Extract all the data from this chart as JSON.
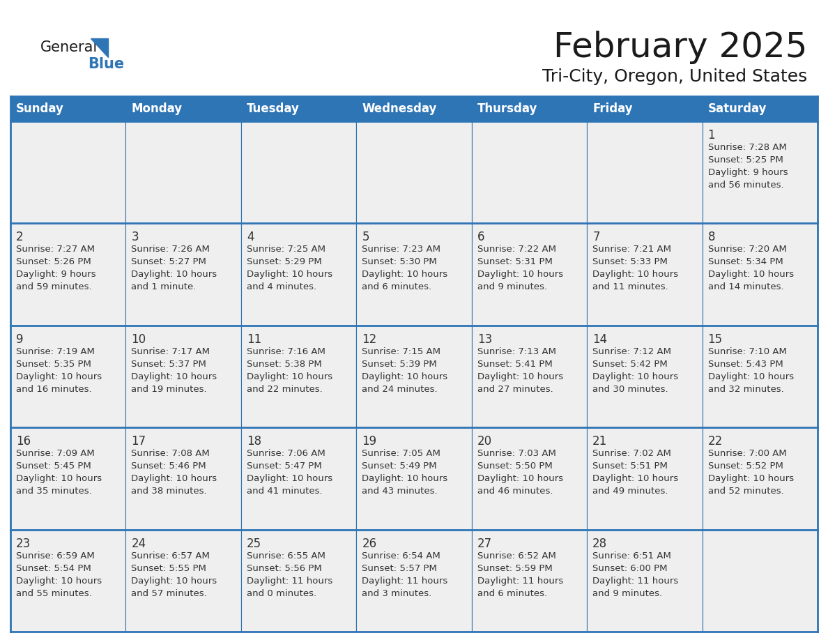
{
  "title": "February 2025",
  "subtitle": "Tri-City, Oregon, United States",
  "header_bg": "#2E75B6",
  "header_text_color": "#FFFFFF",
  "cell_bg_gray": "#EFEFEF",
  "cell_bg_white": "#FFFFFF",
  "border_color": "#2E75B6",
  "day_headers": [
    "Sunday",
    "Monday",
    "Tuesday",
    "Wednesday",
    "Thursday",
    "Friday",
    "Saturday"
  ],
  "title_color": "#1a1a1a",
  "subtitle_color": "#1a1a1a",
  "day_number_color": "#333333",
  "cell_text_color": "#333333",
  "logo_general_color": "#1a1a1a",
  "logo_blue_color": "#2E75B6",
  "calendar_data": [
    [
      null,
      null,
      null,
      null,
      null,
      null,
      {
        "day": "1",
        "sunrise": "7:28 AM",
        "sunset": "5:25 PM",
        "daylight_line1": "9 hours",
        "daylight_line2": "and 56 minutes."
      }
    ],
    [
      {
        "day": "2",
        "sunrise": "7:27 AM",
        "sunset": "5:26 PM",
        "daylight_line1": "9 hours",
        "daylight_line2": "and 59 minutes."
      },
      {
        "day": "3",
        "sunrise": "7:26 AM",
        "sunset": "5:27 PM",
        "daylight_line1": "10 hours",
        "daylight_line2": "and 1 minute."
      },
      {
        "day": "4",
        "sunrise": "7:25 AM",
        "sunset": "5:29 PM",
        "daylight_line1": "10 hours",
        "daylight_line2": "and 4 minutes."
      },
      {
        "day": "5",
        "sunrise": "7:23 AM",
        "sunset": "5:30 PM",
        "daylight_line1": "10 hours",
        "daylight_line2": "and 6 minutes."
      },
      {
        "day": "6",
        "sunrise": "7:22 AM",
        "sunset": "5:31 PM",
        "daylight_line1": "10 hours",
        "daylight_line2": "and 9 minutes."
      },
      {
        "day": "7",
        "sunrise": "7:21 AM",
        "sunset": "5:33 PM",
        "daylight_line1": "10 hours",
        "daylight_line2": "and 11 minutes."
      },
      {
        "day": "8",
        "sunrise": "7:20 AM",
        "sunset": "5:34 PM",
        "daylight_line1": "10 hours",
        "daylight_line2": "and 14 minutes."
      }
    ],
    [
      {
        "day": "9",
        "sunrise": "7:19 AM",
        "sunset": "5:35 PM",
        "daylight_line1": "10 hours",
        "daylight_line2": "and 16 minutes."
      },
      {
        "day": "10",
        "sunrise": "7:17 AM",
        "sunset": "5:37 PM",
        "daylight_line1": "10 hours",
        "daylight_line2": "and 19 minutes."
      },
      {
        "day": "11",
        "sunrise": "7:16 AM",
        "sunset": "5:38 PM",
        "daylight_line1": "10 hours",
        "daylight_line2": "and 22 minutes."
      },
      {
        "day": "12",
        "sunrise": "7:15 AM",
        "sunset": "5:39 PM",
        "daylight_line1": "10 hours",
        "daylight_line2": "and 24 minutes."
      },
      {
        "day": "13",
        "sunrise": "7:13 AM",
        "sunset": "5:41 PM",
        "daylight_line1": "10 hours",
        "daylight_line2": "and 27 minutes."
      },
      {
        "day": "14",
        "sunrise": "7:12 AM",
        "sunset": "5:42 PM",
        "daylight_line1": "10 hours",
        "daylight_line2": "and 30 minutes."
      },
      {
        "day": "15",
        "sunrise": "7:10 AM",
        "sunset": "5:43 PM",
        "daylight_line1": "10 hours",
        "daylight_line2": "and 32 minutes."
      }
    ],
    [
      {
        "day": "16",
        "sunrise": "7:09 AM",
        "sunset": "5:45 PM",
        "daylight_line1": "10 hours",
        "daylight_line2": "and 35 minutes."
      },
      {
        "day": "17",
        "sunrise": "7:08 AM",
        "sunset": "5:46 PM",
        "daylight_line1": "10 hours",
        "daylight_line2": "and 38 minutes."
      },
      {
        "day": "18",
        "sunrise": "7:06 AM",
        "sunset": "5:47 PM",
        "daylight_line1": "10 hours",
        "daylight_line2": "and 41 minutes."
      },
      {
        "day": "19",
        "sunrise": "7:05 AM",
        "sunset": "5:49 PM",
        "daylight_line1": "10 hours",
        "daylight_line2": "and 43 minutes."
      },
      {
        "day": "20",
        "sunrise": "7:03 AM",
        "sunset": "5:50 PM",
        "daylight_line1": "10 hours",
        "daylight_line2": "and 46 minutes."
      },
      {
        "day": "21",
        "sunrise": "7:02 AM",
        "sunset": "5:51 PM",
        "daylight_line1": "10 hours",
        "daylight_line2": "and 49 minutes."
      },
      {
        "day": "22",
        "sunrise": "7:00 AM",
        "sunset": "5:52 PM",
        "daylight_line1": "10 hours",
        "daylight_line2": "and 52 minutes."
      }
    ],
    [
      {
        "day": "23",
        "sunrise": "6:59 AM",
        "sunset": "5:54 PM",
        "daylight_line1": "10 hours",
        "daylight_line2": "and 55 minutes."
      },
      {
        "day": "24",
        "sunrise": "6:57 AM",
        "sunset": "5:55 PM",
        "daylight_line1": "10 hours",
        "daylight_line2": "and 57 minutes."
      },
      {
        "day": "25",
        "sunrise": "6:55 AM",
        "sunset": "5:56 PM",
        "daylight_line1": "11 hours",
        "daylight_line2": "and 0 minutes."
      },
      {
        "day": "26",
        "sunrise": "6:54 AM",
        "sunset": "5:57 PM",
        "daylight_line1": "11 hours",
        "daylight_line2": "and 3 minutes."
      },
      {
        "day": "27",
        "sunrise": "6:52 AM",
        "sunset": "5:59 PM",
        "daylight_line1": "11 hours",
        "daylight_line2": "and 6 minutes."
      },
      {
        "day": "28",
        "sunrise": "6:51 AM",
        "sunset": "6:00 PM",
        "daylight_line1": "11 hours",
        "daylight_line2": "and 9 minutes."
      },
      null
    ]
  ]
}
